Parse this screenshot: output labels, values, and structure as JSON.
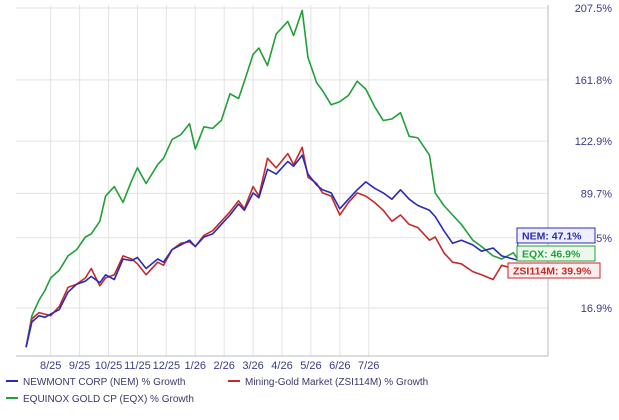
{
  "colors": {
    "nem": "#2a2ab8",
    "zsi": "#c42a2a",
    "eqx": "#22a038",
    "axis_text": "#3a3a8a",
    "grid": "#e3e3e3"
  },
  "legend": {
    "nem": "NEWMONT CORP (NEM) % Growth",
    "zsi": "Mining-Gold Market (ZSI114M) % Growth",
    "eqx": "EQUINOX GOLD CP (EQX) % Growth"
  },
  "chart_data": {
    "type": "line",
    "x_tick_labels": [
      "8/25",
      "9/25",
      "10/25",
      "11/25",
      "12/25",
      "1/26",
      "2/26",
      "3/26",
      "4/26",
      "5/26",
      "6/26",
      "7/26"
    ],
    "y_tick_labels": [
      "16.9%",
      "61.5%",
      "89.7%",
      "122.9%",
      "161.8%",
      "207.5%"
    ],
    "y_ticks": [
      16.9,
      61.5,
      89.7,
      122.9,
      161.8,
      207.5
    ],
    "series": [
      {
        "key": "eqx",
        "name": "EQUINOX GOLD CP (EQX) % Growth",
        "end_label": "EQX: 46.9%",
        "values": [
          [
            0.15,
            -8
          ],
          [
            0.35,
            12
          ],
          [
            0.6,
            22
          ],
          [
            0.8,
            28
          ],
          [
            1.0,
            36
          ],
          [
            1.3,
            41
          ],
          [
            1.6,
            50
          ],
          [
            1.9,
            54
          ],
          [
            2.2,
            62
          ],
          [
            2.4,
            64
          ],
          [
            2.7,
            72
          ],
          [
            2.9,
            88
          ],
          [
            3.2,
            94
          ],
          [
            3.5,
            84
          ],
          [
            3.8,
            98
          ],
          [
            4.0,
            106
          ],
          [
            4.3,
            96
          ],
          [
            4.7,
            108
          ],
          [
            4.9,
            112
          ],
          [
            5.2,
            124
          ],
          [
            5.5,
            127
          ],
          [
            5.8,
            134
          ],
          [
            6.0,
            118
          ],
          [
            6.3,
            132
          ],
          [
            6.6,
            131
          ],
          [
            6.9,
            136
          ],
          [
            7.2,
            153
          ],
          [
            7.5,
            150
          ],
          [
            7.7,
            161
          ],
          [
            8.0,
            178
          ],
          [
            8.2,
            182
          ],
          [
            8.5,
            171
          ],
          [
            8.8,
            191
          ],
          [
            9.2,
            199
          ],
          [
            9.4,
            190
          ],
          [
            9.7,
            206
          ],
          [
            9.9,
            176
          ],
          [
            10.2,
            160
          ],
          [
            10.4,
            155
          ],
          [
            10.7,
            146
          ],
          [
            11.0,
            148
          ],
          [
            11.3,
            152
          ],
          [
            11.6,
            161
          ],
          [
            11.9,
            156
          ],
          [
            12.2,
            145
          ],
          [
            12.5,
            136
          ],
          [
            12.8,
            137
          ],
          [
            13.1,
            141
          ],
          [
            13.4,
            126
          ],
          [
            13.7,
            125
          ],
          [
            14.1,
            114
          ],
          [
            14.3,
            90
          ],
          [
            14.6,
            82
          ],
          [
            14.9,
            76
          ],
          [
            15.2,
            70
          ],
          [
            15.6,
            60
          ],
          [
            15.9,
            56
          ],
          [
            16.3,
            50
          ],
          [
            16.6,
            48
          ],
          [
            17.0,
            52
          ],
          [
            17.2,
            46.9
          ]
        ]
      },
      {
        "key": "zsi",
        "name": "Mining-Gold Market (ZSI114M) % Growth",
        "end_label": "ZSI114M: 39.9%",
        "values": [
          [
            0.15,
            -8
          ],
          [
            0.35,
            10
          ],
          [
            0.6,
            14
          ],
          [
            0.8,
            13
          ],
          [
            1.0,
            12
          ],
          [
            1.3,
            18
          ],
          [
            1.6,
            30
          ],
          [
            1.9,
            32
          ],
          [
            2.2,
            36
          ],
          [
            2.4,
            42
          ],
          [
            2.7,
            31
          ],
          [
            2.9,
            36
          ],
          [
            3.2,
            38
          ],
          [
            3.5,
            50
          ],
          [
            3.8,
            48
          ],
          [
            4.0,
            45
          ],
          [
            4.3,
            38
          ],
          [
            4.7,
            46
          ],
          [
            4.9,
            44
          ],
          [
            5.2,
            54
          ],
          [
            5.5,
            58
          ],
          [
            5.8,
            59
          ],
          [
            6.0,
            56
          ],
          [
            6.3,
            63
          ],
          [
            6.6,
            66
          ],
          [
            6.9,
            72
          ],
          [
            7.2,
            78
          ],
          [
            7.5,
            85
          ],
          [
            7.7,
            80
          ],
          [
            8.0,
            94
          ],
          [
            8.2,
            88
          ],
          [
            8.5,
            112
          ],
          [
            8.8,
            106
          ],
          [
            9.2,
            115
          ],
          [
            9.4,
            108
          ],
          [
            9.7,
            119
          ],
          [
            9.9,
            100
          ],
          [
            10.2,
            96
          ],
          [
            10.4,
            90
          ],
          [
            10.7,
            88
          ],
          [
            11.0,
            76
          ],
          [
            11.3,
            84
          ],
          [
            11.6,
            90
          ],
          [
            11.9,
            88
          ],
          [
            12.2,
            84
          ],
          [
            12.5,
            79
          ],
          [
            12.8,
            72
          ],
          [
            13.1,
            76
          ],
          [
            13.4,
            70
          ],
          [
            13.7,
            68
          ],
          [
            14.1,
            60
          ],
          [
            14.3,
            62
          ],
          [
            14.6,
            52
          ],
          [
            14.9,
            46
          ],
          [
            15.2,
            45
          ],
          [
            15.6,
            40
          ],
          [
            15.9,
            38
          ],
          [
            16.3,
            35
          ],
          [
            16.6,
            44
          ],
          [
            17.0,
            42
          ],
          [
            17.2,
            39.9
          ]
        ]
      },
      {
        "key": "nem",
        "name": "NEWMONT CORP (NEM) % Growth",
        "end_label": "NEM: 47.1%",
        "values": [
          [
            0.15,
            -8
          ],
          [
            0.35,
            8
          ],
          [
            0.6,
            12
          ],
          [
            0.8,
            11
          ],
          [
            1.0,
            13
          ],
          [
            1.3,
            16
          ],
          [
            1.6,
            27
          ],
          [
            1.9,
            32
          ],
          [
            2.2,
            34
          ],
          [
            2.4,
            37
          ],
          [
            2.7,
            33
          ],
          [
            2.9,
            38
          ],
          [
            3.2,
            35
          ],
          [
            3.5,
            48
          ],
          [
            3.8,
            47
          ],
          [
            4.0,
            49
          ],
          [
            4.3,
            42
          ],
          [
            4.7,
            48
          ],
          [
            4.9,
            46
          ],
          [
            5.2,
            54
          ],
          [
            5.5,
            57
          ],
          [
            5.8,
            60
          ],
          [
            6.0,
            56
          ],
          [
            6.3,
            62
          ],
          [
            6.6,
            64
          ],
          [
            6.9,
            70
          ],
          [
            7.2,
            76
          ],
          [
            7.5,
            83
          ],
          [
            7.7,
            79
          ],
          [
            8.0,
            90
          ],
          [
            8.2,
            87
          ],
          [
            8.5,
            105
          ],
          [
            8.8,
            102
          ],
          [
            9.2,
            110
          ],
          [
            9.4,
            107
          ],
          [
            9.7,
            114
          ],
          [
            9.9,
            102
          ],
          [
            10.2,
            95
          ],
          [
            10.4,
            92
          ],
          [
            10.7,
            90
          ],
          [
            11.0,
            80
          ],
          [
            11.3,
            86
          ],
          [
            11.6,
            92
          ],
          [
            11.9,
            97
          ],
          [
            12.2,
            93
          ],
          [
            12.5,
            90
          ],
          [
            12.8,
            86
          ],
          [
            13.1,
            92
          ],
          [
            13.4,
            86
          ],
          [
            13.7,
            82
          ],
          [
            14.1,
            79
          ],
          [
            14.3,
            75
          ],
          [
            14.6,
            66
          ],
          [
            14.9,
            58
          ],
          [
            15.2,
            60
          ],
          [
            15.6,
            57
          ],
          [
            15.9,
            53
          ],
          [
            16.3,
            55
          ],
          [
            16.6,
            50
          ],
          [
            17.0,
            48
          ],
          [
            17.2,
            47.1
          ]
        ]
      }
    ]
  }
}
